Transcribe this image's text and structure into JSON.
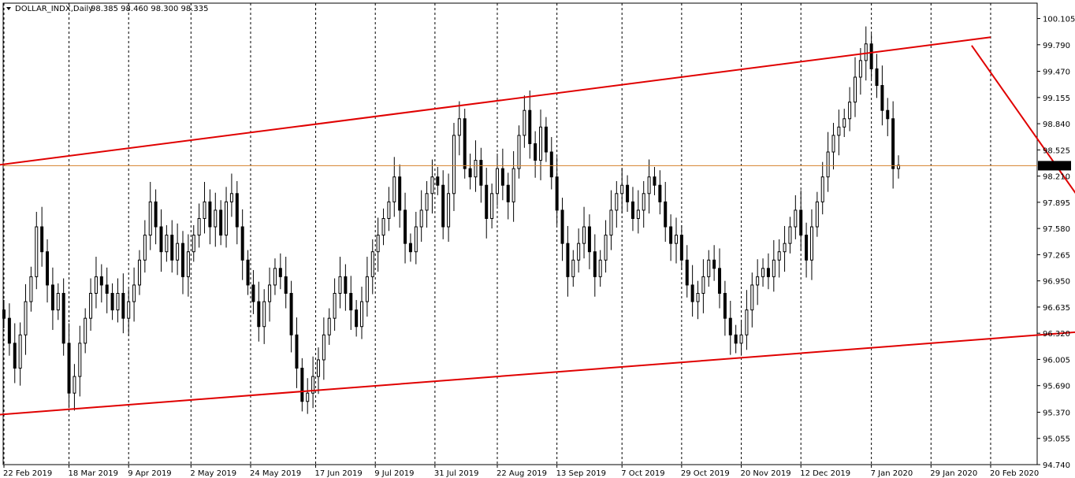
{
  "chart_data": {
    "type": "candlestick",
    "symbol": "DOLLAR_INDX,Daily",
    "ohlc": "98.385 98.460 98.300 98.335",
    "current_price": "98.335",
    "ylim": [
      94.74,
      100.29
    ],
    "y_ticks": [
      "100.105",
      "99.790",
      "99.470",
      "99.155",
      "98.840",
      "98.525",
      "98.210",
      "97.895",
      "97.580",
      "97.265",
      "96.950",
      "96.635",
      "96.320",
      "96.005",
      "95.690",
      "95.370",
      "95.055",
      "94.740"
    ],
    "x_ticks": [
      "22 Feb 2019",
      "18 Mar 2019",
      "9 Apr 2019",
      "2 May 2019",
      "24 May 2019",
      "17 Jun 2019",
      "9 Jul 2019",
      "31 Jul 2019",
      "22 Aug 2019",
      "13 Sep 2019",
      "7 Oct 2019",
      "29 Oct 2019",
      "20 Nov 2019",
      "12 Dec 2019",
      "7 Jan 2020",
      "29 Jan 2020",
      "20 Feb 2020"
    ],
    "x_range_days": [
      0,
      380
    ],
    "tick_days": [
      0,
      24,
      46,
      69,
      91,
      115,
      137,
      159,
      182,
      204,
      228,
      250,
      272,
      294,
      320,
      342,
      364
    ],
    "closes": [
      {
        "d": 0,
        "c": 96.5
      },
      {
        "d": 2,
        "c": 96.2
      },
      {
        "d": 4,
        "c": 95.9
      },
      {
        "d": 6,
        "c": 96.3
      },
      {
        "d": 8,
        "c": 96.7
      },
      {
        "d": 10,
        "c": 97.0
      },
      {
        "d": 12,
        "c": 97.6
      },
      {
        "d": 14,
        "c": 97.3
      },
      {
        "d": 16,
        "c": 96.9
      },
      {
        "d": 18,
        "c": 96.6
      },
      {
        "d": 20,
        "c": 96.8
      },
      {
        "d": 22,
        "c": 96.2
      },
      {
        "d": 24,
        "c": 95.6
      },
      {
        "d": 26,
        "c": 95.8
      },
      {
        "d": 28,
        "c": 96.2
      },
      {
        "d": 30,
        "c": 96.5
      },
      {
        "d": 32,
        "c": 96.8
      },
      {
        "d": 34,
        "c": 97.0
      },
      {
        "d": 36,
        "c": 96.9
      },
      {
        "d": 38,
        "c": 96.8
      },
      {
        "d": 40,
        "c": 96.6
      },
      {
        "d": 42,
        "c": 96.8
      },
      {
        "d": 44,
        "c": 96.5
      },
      {
        "d": 46,
        "c": 96.7
      },
      {
        "d": 48,
        "c": 96.9
      },
      {
        "d": 50,
        "c": 97.2
      },
      {
        "d": 52,
        "c": 97.5
      },
      {
        "d": 54,
        "c": 97.9
      },
      {
        "d": 56,
        "c": 97.6
      },
      {
        "d": 58,
        "c": 97.3
      },
      {
        "d": 60,
        "c": 97.5
      },
      {
        "d": 62,
        "c": 97.2
      },
      {
        "d": 64,
        "c": 97.4
      },
      {
        "d": 66,
        "c": 97.0
      },
      {
        "d": 68,
        "c": 97.3
      },
      {
        "d": 70,
        "c": 97.5
      },
      {
        "d": 72,
        "c": 97.7
      },
      {
        "d": 74,
        "c": 97.9
      },
      {
        "d": 76,
        "c": 97.6
      },
      {
        "d": 78,
        "c": 97.8
      },
      {
        "d": 80,
        "c": 97.5
      },
      {
        "d": 82,
        "c": 97.9
      },
      {
        "d": 84,
        "c": 98.0
      },
      {
        "d": 86,
        "c": 97.6
      },
      {
        "d": 88,
        "c": 97.2
      },
      {
        "d": 90,
        "c": 96.9
      },
      {
        "d": 92,
        "c": 96.7
      },
      {
        "d": 94,
        "c": 96.4
      },
      {
        "d": 96,
        "c": 96.7
      },
      {
        "d": 98,
        "c": 96.9
      },
      {
        "d": 100,
        "c": 97.1
      },
      {
        "d": 102,
        "c": 97.0
      },
      {
        "d": 104,
        "c": 96.8
      },
      {
        "d": 106,
        "c": 96.3
      },
      {
        "d": 108,
        "c": 95.9
      },
      {
        "d": 110,
        "c": 95.5
      },
      {
        "d": 112,
        "c": 95.6
      },
      {
        "d": 114,
        "c": 95.8
      },
      {
        "d": 116,
        "c": 96.0
      },
      {
        "d": 118,
        "c": 96.3
      },
      {
        "d": 120,
        "c": 96.5
      },
      {
        "d": 122,
        "c": 96.8
      },
      {
        "d": 124,
        "c": 97.0
      },
      {
        "d": 126,
        "c": 96.8
      },
      {
        "d": 128,
        "c": 96.6
      },
      {
        "d": 130,
        "c": 96.4
      },
      {
        "d": 132,
        "c": 96.7
      },
      {
        "d": 134,
        "c": 97.0
      },
      {
        "d": 136,
        "c": 97.3
      },
      {
        "d": 138,
        "c": 97.5
      },
      {
        "d": 140,
        "c": 97.7
      },
      {
        "d": 142,
        "c": 97.9
      },
      {
        "d": 144,
        "c": 98.2
      },
      {
        "d": 146,
        "c": 97.8
      },
      {
        "d": 148,
        "c": 97.4
      },
      {
        "d": 150,
        "c": 97.3
      },
      {
        "d": 152,
        "c": 97.6
      },
      {
        "d": 154,
        "c": 97.8
      },
      {
        "d": 156,
        "c": 98.0
      },
      {
        "d": 158,
        "c": 98.2
      },
      {
        "d": 160,
        "c": 98.1
      },
      {
        "d": 162,
        "c": 97.6
      },
      {
        "d": 164,
        "c": 98.0
      },
      {
        "d": 166,
        "c": 98.7
      },
      {
        "d": 168,
        "c": 98.9
      },
      {
        "d": 170,
        "c": 98.3
      },
      {
        "d": 172,
        "c": 98.2
      },
      {
        "d": 174,
        "c": 98.4
      },
      {
        "d": 176,
        "c": 98.1
      },
      {
        "d": 178,
        "c": 97.7
      },
      {
        "d": 180,
        "c": 98.0
      },
      {
        "d": 182,
        "c": 98.3
      },
      {
        "d": 184,
        "c": 98.1
      },
      {
        "d": 186,
        "c": 97.9
      },
      {
        "d": 188,
        "c": 98.3
      },
      {
        "d": 190,
        "c": 98.7
      },
      {
        "d": 192,
        "c": 99.0
      },
      {
        "d": 194,
        "c": 98.6
      },
      {
        "d": 196,
        "c": 98.4
      },
      {
        "d": 198,
        "c": 98.8
      },
      {
        "d": 200,
        "c": 98.5
      },
      {
        "d": 202,
        "c": 98.2
      },
      {
        "d": 204,
        "c": 97.8
      },
      {
        "d": 206,
        "c": 97.4
      },
      {
        "d": 208,
        "c": 97.0
      },
      {
        "d": 210,
        "c": 97.2
      },
      {
        "d": 212,
        "c": 97.4
      },
      {
        "d": 214,
        "c": 97.6
      },
      {
        "d": 216,
        "c": 97.3
      },
      {
        "d": 218,
        "c": 97.0
      },
      {
        "d": 220,
        "c": 97.2
      },
      {
        "d": 222,
        "c": 97.5
      },
      {
        "d": 224,
        "c": 97.8
      },
      {
        "d": 226,
        "c": 98.0
      },
      {
        "d": 228,
        "c": 98.1
      },
      {
        "d": 230,
        "c": 97.9
      },
      {
        "d": 232,
        "c": 97.7
      },
      {
        "d": 234,
        "c": 97.8
      },
      {
        "d": 236,
        "c": 98.0
      },
      {
        "d": 238,
        "c": 98.2
      },
      {
        "d": 240,
        "c": 98.1
      },
      {
        "d": 242,
        "c": 97.9
      },
      {
        "d": 244,
        "c": 97.6
      },
      {
        "d": 246,
        "c": 97.4
      },
      {
        "d": 248,
        "c": 97.5
      },
      {
        "d": 250,
        "c": 97.2
      },
      {
        "d": 252,
        "c": 96.9
      },
      {
        "d": 254,
        "c": 96.7
      },
      {
        "d": 256,
        "c": 96.8
      },
      {
        "d": 258,
        "c": 97.0
      },
      {
        "d": 260,
        "c": 97.2
      },
      {
        "d": 262,
        "c": 97.1
      },
      {
        "d": 264,
        "c": 96.8
      },
      {
        "d": 266,
        "c": 96.5
      },
      {
        "d": 268,
        "c": 96.3
      },
      {
        "d": 270,
        "c": 96.2
      },
      {
        "d": 272,
        "c": 96.3
      },
      {
        "d": 274,
        "c": 96.6
      },
      {
        "d": 276,
        "c": 96.9
      },
      {
        "d": 278,
        "c": 97.0
      },
      {
        "d": 280,
        "c": 97.1
      },
      {
        "d": 282,
        "c": 97.0
      },
      {
        "d": 284,
        "c": 97.2
      },
      {
        "d": 286,
        "c": 97.3
      },
      {
        "d": 288,
        "c": 97.4
      },
      {
        "d": 290,
        "c": 97.6
      },
      {
        "d": 292,
        "c": 97.8
      },
      {
        "d": 294,
        "c": 97.5
      },
      {
        "d": 296,
        "c": 97.2
      },
      {
        "d": 298,
        "c": 97.6
      },
      {
        "d": 300,
        "c": 97.9
      },
      {
        "d": 302,
        "c": 98.2
      },
      {
        "d": 304,
        "c": 98.5
      },
      {
        "d": 306,
        "c": 98.7
      },
      {
        "d": 308,
        "c": 98.8
      },
      {
        "d": 310,
        "c": 98.9
      },
      {
        "d": 312,
        "c": 99.1
      },
      {
        "d": 314,
        "c": 99.4
      },
      {
        "d": 316,
        "c": 99.6
      },
      {
        "d": 318,
        "c": 99.8
      },
      {
        "d": 320,
        "c": 99.5
      },
      {
        "d": 322,
        "c": 99.3
      },
      {
        "d": 324,
        "c": 99.0
      },
      {
        "d": 326,
        "c": 98.9
      },
      {
        "d": 328,
        "c": 98.3
      },
      {
        "d": 330,
        "c": 98.34
      }
    ],
    "trendlines": [
      {
        "name": "upper-channel",
        "points": [
          {
            "d": -60,
            "p": 98.1
          },
          {
            "d": 364,
            "p": 99.88
          }
        ],
        "color": "#e00000"
      },
      {
        "name": "lower-channel",
        "points": [
          {
            "d": -58,
            "p": 95.2
          },
          {
            "d": 462,
            "p": 96.5
          }
        ],
        "color": "#e00000"
      },
      {
        "name": "projection",
        "points": [
          {
            "d": 357,
            "p": 99.78
          },
          {
            "d": 430,
            "p": 96.4
          }
        ],
        "color": "#e00000"
      }
    ],
    "colors": {
      "candle": "#000000",
      "price_line": "#d4802a",
      "price_label_bg": "#000000",
      "price_label_text": "#ffffff",
      "trendline": "#e00000",
      "grid": "#000000",
      "background": "#ffffff"
    }
  }
}
